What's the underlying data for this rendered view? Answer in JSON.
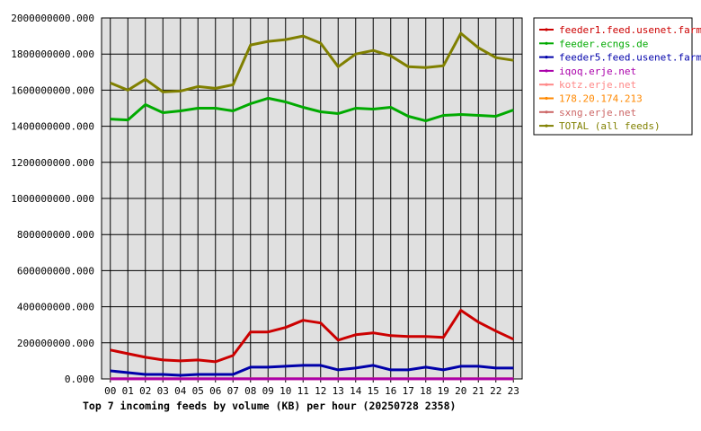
{
  "chart_data": {
    "type": "line",
    "title": "Top 7 incoming feeds by volume (KB) per hour (20250728 2358)",
    "xlabel": "",
    "ylabel": "",
    "ylim": [
      0,
      2000000000
    ],
    "y_ticks": [
      "0.000",
      "200000000.000",
      "400000000.000",
      "600000000.000",
      "800000000.000",
      "1000000000.000",
      "1200000000.000",
      "1400000000.000",
      "1600000000.000",
      "1800000000.000",
      "2000000000.000"
    ],
    "y_tick_values": [
      0,
      200000000,
      400000000,
      600000000,
      800000000,
      1000000000,
      1200000000,
      1400000000,
      1600000000,
      1800000000,
      2000000000
    ],
    "categories": [
      "00",
      "01",
      "02",
      "03",
      "04",
      "05",
      "06",
      "07",
      "08",
      "09",
      "10",
      "11",
      "12",
      "13",
      "14",
      "15",
      "16",
      "17",
      "18",
      "19",
      "20",
      "21",
      "22",
      "23"
    ],
    "grid": true,
    "legend_position": "right",
    "background": "#e0e0e0",
    "series": [
      {
        "name": "feeder1.feed.usenet.farm",
        "color": "#cc0000",
        "values": [
          160000000,
          140000000,
          120000000,
          105000000,
          100000000,
          105000000,
          95000000,
          130000000,
          260000000,
          260000000,
          285000000,
          325000000,
          310000000,
          215000000,
          245000000,
          255000000,
          240000000,
          235000000,
          235000000,
          230000000,
          380000000,
          315000000,
          265000000,
          220000000
        ]
      },
      {
        "name": "feeder.ecngs.de",
        "color": "#00aa00",
        "values": [
          1440000000,
          1435000000,
          1520000000,
          1475000000,
          1485000000,
          1500000000,
          1500000000,
          1485000000,
          1525000000,
          1555000000,
          1535000000,
          1505000000,
          1480000000,
          1470000000,
          1500000000,
          1495000000,
          1505000000,
          1455000000,
          1430000000,
          1460000000,
          1465000000,
          1460000000,
          1455000000,
          1490000000
        ]
      },
      {
        "name": "feeder5.feed.usenet.farm",
        "color": "#0000aa",
        "values": [
          45000000,
          35000000,
          25000000,
          25000000,
          20000000,
          25000000,
          25000000,
          25000000,
          65000000,
          65000000,
          70000000,
          75000000,
          75000000,
          50000000,
          60000000,
          75000000,
          50000000,
          50000000,
          65000000,
          50000000,
          70000000,
          70000000,
          60000000,
          60000000
        ]
      },
      {
        "name": "iqoq.erje.net",
        "color": "#aa00aa",
        "values": [
          500000,
          500000,
          500000,
          500000,
          500000,
          500000,
          500000,
          500000,
          500000,
          500000,
          500000,
          500000,
          500000,
          500000,
          500000,
          500000,
          500000,
          500000,
          500000,
          500000,
          500000,
          500000,
          500000,
          500000
        ]
      },
      {
        "name": "kotz.erje.net",
        "color": "#ff8888",
        "values": [
          400000,
          400000,
          400000,
          400000,
          400000,
          400000,
          400000,
          400000,
          400000,
          400000,
          400000,
          400000,
          400000,
          400000,
          400000,
          400000,
          400000,
          400000,
          400000,
          400000,
          400000,
          400000,
          400000,
          400000
        ]
      },
      {
        "name": "178.20.174.213",
        "color": "#ff8800",
        "values": [
          300000,
          300000,
          300000,
          300000,
          300000,
          300000,
          300000,
          300000,
          300000,
          300000,
          300000,
          300000,
          300000,
          300000,
          300000,
          300000,
          300000,
          300000,
          300000,
          300000,
          300000,
          300000,
          300000,
          300000
        ]
      },
      {
        "name": "sxng.erje.net",
        "color": "#cc6666",
        "values": [
          200000,
          200000,
          200000,
          200000,
          200000,
          200000,
          200000,
          200000,
          200000,
          200000,
          200000,
          200000,
          200000,
          200000,
          200000,
          200000,
          200000,
          200000,
          200000,
          200000,
          200000,
          200000,
          200000,
          200000
        ]
      },
      {
        "name": "TOTAL (all feeds)",
        "color": "#808000",
        "values": [
          1640000000,
          1600000000,
          1660000000,
          1590000000,
          1595000000,
          1620000000,
          1610000000,
          1630000000,
          1850000000,
          1870000000,
          1880000000,
          1900000000,
          1860000000,
          1730000000,
          1800000000,
          1820000000,
          1790000000,
          1730000000,
          1725000000,
          1735000000,
          1915000000,
          1835000000,
          1780000000,
          1765000000
        ]
      }
    ]
  }
}
